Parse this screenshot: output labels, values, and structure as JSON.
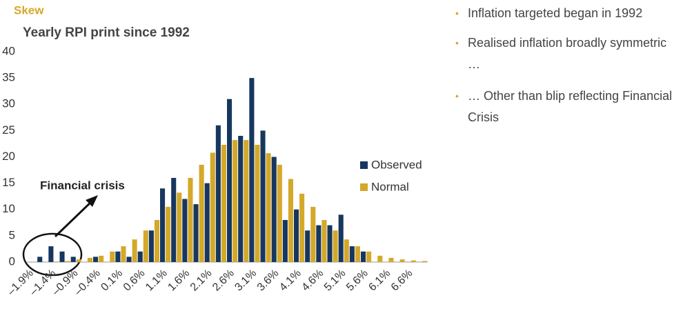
{
  "chart_data": {
    "type": "bar",
    "title": "Skew",
    "subtitle": "Yearly RPI print since 1992",
    "annotation": "Financial crisis",
    "categories": [
      "–1.9%",
      null,
      "–1.4%",
      null,
      "–0.9%",
      null,
      "–0.4%",
      null,
      "0.1%",
      null,
      "0.6%",
      null,
      "1.1%",
      null,
      "1.6%",
      null,
      "2.1%",
      null,
      "2.6%",
      null,
      "3.1%",
      null,
      "3.6%",
      null,
      "4.1%",
      null,
      "4.6%",
      null,
      "5.1%",
      null,
      "5.6%",
      null,
      "6.1%",
      null,
      "6.6%",
      null
    ],
    "series": [
      {
        "name": "Observed",
        "color": "#17375e",
        "values": [
          0,
          1,
          3,
          2,
          1,
          0,
          1,
          0,
          2,
          1,
          2,
          6,
          14,
          16,
          12,
          11,
          15,
          26,
          31,
          24,
          35,
          25,
          20,
          8,
          10,
          6,
          7,
          7,
          9,
          3,
          2,
          0,
          0,
          0,
          0,
          0
        ]
      },
      {
        "name": "Normal",
        "color": "#d4a82a",
        "values": [
          0,
          0,
          0.1,
          0.2,
          0.5,
          0.8,
          1.2,
          2,
          3,
          4.3,
          6,
          8,
          10.5,
          13.2,
          16,
          18.5,
          20.8,
          22.3,
          23.2,
          23.2,
          22.3,
          20.7,
          18.5,
          15.8,
          13,
          10.5,
          8,
          6,
          4.3,
          3,
          2,
          1.2,
          0.8,
          0.5,
          0.3,
          0.2
        ]
      }
    ],
    "ylim": [
      0,
      40
    ],
    "yticks": [
      0,
      5,
      10,
      15,
      20,
      25,
      30,
      35,
      40
    ],
    "grid": false
  },
  "bullets": [
    "Inflation targeted began in 1992",
    "Realised inflation broadly symmetric …",
    "… Other than blip reflecting Financial Crisis"
  ]
}
